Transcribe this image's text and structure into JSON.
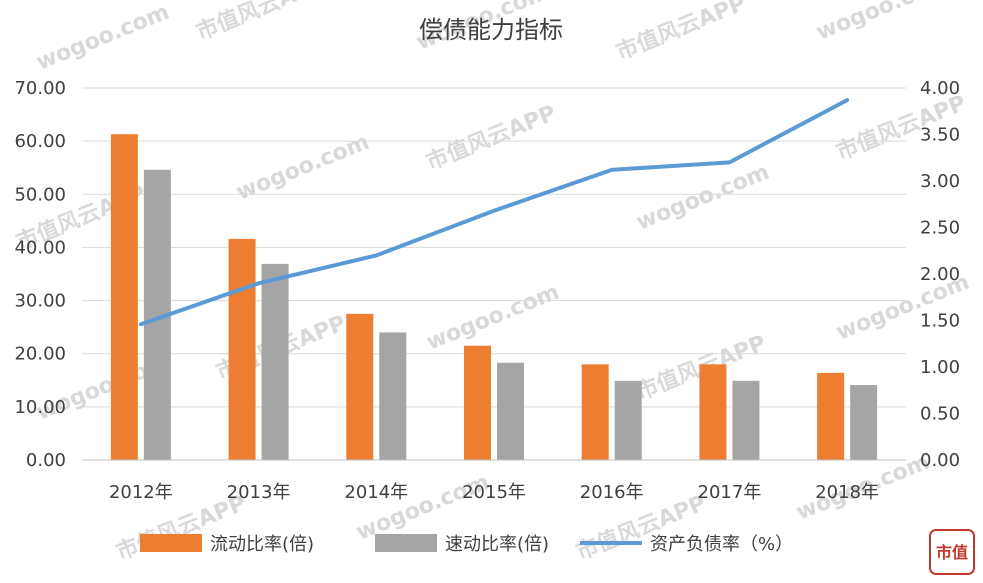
{
  "watermark": {
    "text_latin": "wogoo.com",
    "text_cn": "市值风云APP"
  },
  "logo": {
    "text": "市值",
    "color": "#c0392b"
  },
  "chart_data": {
    "type": "bar",
    "title": "偿债能力指标",
    "categories": [
      "2012年",
      "2013年",
      "2014年",
      "2015年",
      "2016年",
      "2017年",
      "2018年"
    ],
    "series": [
      {
        "name": "流动比率(倍)",
        "type": "bar",
        "axis": "left",
        "color": "#ed7d31",
        "values": [
          61.3,
          41.6,
          27.5,
          21.5,
          18.0,
          18.0,
          16.4
        ]
      },
      {
        "name": "速动比率(倍)",
        "type": "bar",
        "axis": "left",
        "color": "#a5a5a5",
        "values": [
          54.6,
          36.9,
          24.0,
          18.3,
          14.9,
          14.9,
          14.1
        ]
      },
      {
        "name": "资产负债率（%）",
        "type": "line",
        "axis": "right",
        "color": "#5b9bd5",
        "values": [
          1.46,
          1.9,
          2.2,
          2.68,
          3.12,
          3.2,
          3.87
        ]
      }
    ],
    "y_left": {
      "range": [
        0,
        70
      ],
      "ticks": [
        "0.00",
        "10.00",
        "20.00",
        "30.00",
        "40.00",
        "50.00",
        "60.00",
        "70.00"
      ]
    },
    "y_right": {
      "range": [
        0,
        4
      ],
      "ticks": [
        "0.00",
        "0.50",
        "1.00",
        "1.50",
        "2.00",
        "2.50",
        "3.00",
        "3.50",
        "4.00"
      ]
    },
    "grid": true,
    "legend_position": "bottom"
  }
}
